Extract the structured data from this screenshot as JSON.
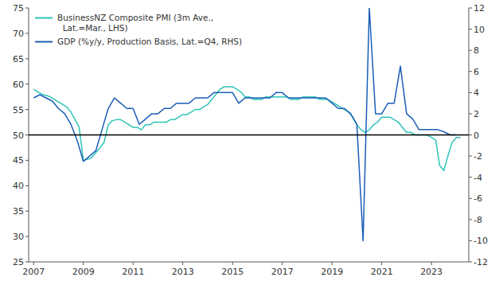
{
  "chart_data": {
    "type": "line",
    "xlim": [
      2006.8,
      2024.5
    ],
    "xticks": [
      2007,
      2009,
      2011,
      2013,
      2015,
      2017,
      2019,
      2021,
      2023
    ],
    "ylim": [
      25,
      75
    ],
    "yticks": [
      25,
      30,
      35,
      40,
      45,
      50,
      55,
      60,
      65,
      70,
      75
    ],
    "y2lim": [
      -12,
      12
    ],
    "y2ticks": [
      -12,
      -10,
      -8,
      -6,
      -4,
      -2,
      0,
      2,
      4,
      6,
      8,
      10,
      12
    ],
    "legend": "upper-left",
    "grid": false,
    "hlines": [
      {
        "value": 50,
        "color": "#000000"
      }
    ],
    "series": [
      {
        "name": "BusinessNZ Composite PMI (3m Ave.,\n  Lat.=Mar., LHS)",
        "color": "#2ec4b6",
        "x": [
          2007.0,
          2007.17,
          2007.33,
          2007.5,
          2007.67,
          2007.83,
          2008.0,
          2008.17,
          2008.33,
          2008.5,
          2008.67,
          2008.83,
          2009.0,
          2009.17,
          2009.33,
          2009.5,
          2009.67,
          2009.83,
          2010.0,
          2010.17,
          2010.33,
          2010.5,
          2010.67,
          2010.83,
          2011.0,
          2011.17,
          2011.33,
          2011.5,
          2011.67,
          2011.83,
          2012.0,
          2012.17,
          2012.33,
          2012.5,
          2012.67,
          2012.83,
          2013.0,
          2013.17,
          2013.33,
          2013.5,
          2013.67,
          2013.83,
          2014.0,
          2014.17,
          2014.33,
          2014.5,
          2014.67,
          2014.83,
          2015.0,
          2015.17,
          2015.33,
          2015.5,
          2015.67,
          2015.83,
          2016.0,
          2016.17,
          2016.33,
          2016.5,
          2016.67,
          2016.83,
          2017.0,
          2017.17,
          2017.33,
          2017.5,
          2017.67,
          2017.83,
          2018.0,
          2018.17,
          2018.33,
          2018.5,
          2018.67,
          2018.83,
          2019.0,
          2019.17,
          2019.33,
          2019.5,
          2019.67,
          2019.83,
          2020.0,
          2020.17,
          2020.33,
          2020.5,
          2020.67,
          2020.83,
          2021.0,
          2021.17,
          2021.33,
          2021.5,
          2021.67,
          2021.83,
          2022.0,
          2022.17,
          2022.33,
          2022.5,
          2022.67,
          2022.83,
          2023.0,
          2023.17,
          2023.33,
          2023.5,
          2023.67,
          2023.83,
          2024.0,
          2024.17
        ],
        "values": [
          59.0,
          58.5,
          58.0,
          57.8,
          57.5,
          57.0,
          56.5,
          56.0,
          55.5,
          54.5,
          53.0,
          51.5,
          45.0,
          45.2,
          45.5,
          46.5,
          47.5,
          48.5,
          52.0,
          52.8,
          53.0,
          53.0,
          52.5,
          52.0,
          51.5,
          51.5,
          51.0,
          52.0,
          52.0,
          52.5,
          52.5,
          52.5,
          52.5,
          53.0,
          53.0,
          53.5,
          54.0,
          54.0,
          54.5,
          55.0,
          55.0,
          55.5,
          56.0,
          57.0,
          58.0,
          59.0,
          59.5,
          59.5,
          59.5,
          59.0,
          58.5,
          57.5,
          57.5,
          57.0,
          57.0,
          57.0,
          57.5,
          57.5,
          57.5,
          57.5,
          57.5,
          57.5,
          57.0,
          57.0,
          57.0,
          57.5,
          57.5,
          57.5,
          57.5,
          57.0,
          57.0,
          57.0,
          56.5,
          56.0,
          55.5,
          55.0,
          54.5,
          53.5,
          52.0,
          51.0,
          50.5,
          51.0,
          52.0,
          52.5,
          53.5,
          53.5,
          53.5,
          53.0,
          52.5,
          51.5,
          50.5,
          50.5,
          50.0,
          50.0,
          50.0,
          50.0,
          49.5,
          49.0,
          44.0,
          43.0,
          46.0,
          48.5,
          49.5,
          49.5
        ]
      },
      {
        "name": "GDP (%y/y, Production Basis, Lat.=Q4, RHS)",
        "color": "#1a5eb8",
        "axis": "y2",
        "x": [
          2007.0,
          2007.25,
          2007.5,
          2007.75,
          2008.0,
          2008.25,
          2008.5,
          2008.75,
          2009.0,
          2009.25,
          2009.5,
          2009.75,
          2010.0,
          2010.25,
          2010.5,
          2010.75,
          2011.0,
          2011.25,
          2011.5,
          2011.75,
          2012.0,
          2012.25,
          2012.5,
          2012.75,
          2013.0,
          2013.25,
          2013.5,
          2013.75,
          2014.0,
          2014.25,
          2014.5,
          2014.75,
          2015.0,
          2015.25,
          2015.5,
          2015.75,
          2016.0,
          2016.25,
          2016.5,
          2016.75,
          2017.0,
          2017.25,
          2017.5,
          2017.75,
          2018.0,
          2018.25,
          2018.5,
          2018.75,
          2019.0,
          2019.25,
          2019.5,
          2019.75,
          2020.0,
          2020.25,
          2020.5,
          2020.75,
          2021.0,
          2021.25,
          2021.5,
          2021.75,
          2022.0,
          2022.25,
          2022.5,
          2022.75,
          2023.0,
          2023.25,
          2023.5,
          2023.75,
          2024.0
        ],
        "values": [
          3.5,
          3.8,
          3.5,
          3.2,
          2.5,
          2.0,
          1.0,
          -0.5,
          -2.5,
          -2.0,
          -1.5,
          0.5,
          2.5,
          3.5,
          3.0,
          2.5,
          2.5,
          1.0,
          1.5,
          2.0,
          2.0,
          2.5,
          2.5,
          3.0,
          3.0,
          3.0,
          3.5,
          3.5,
          3.5,
          4.0,
          4.0,
          4.0,
          4.0,
          3.0,
          3.5,
          3.5,
          3.5,
          3.5,
          3.5,
          4.0,
          4.0,
          3.5,
          3.5,
          3.5,
          3.5,
          3.5,
          3.5,
          3.5,
          3.0,
          2.5,
          2.5,
          2.0,
          1.0,
          -10.0,
          12.0,
          2.0,
          2.0,
          3.0,
          3.0,
          6.5,
          2.0,
          1.5,
          0.5,
          0.5,
          0.5,
          0.5,
          0.3,
          0.0,
          0.0
        ]
      }
    ]
  }
}
